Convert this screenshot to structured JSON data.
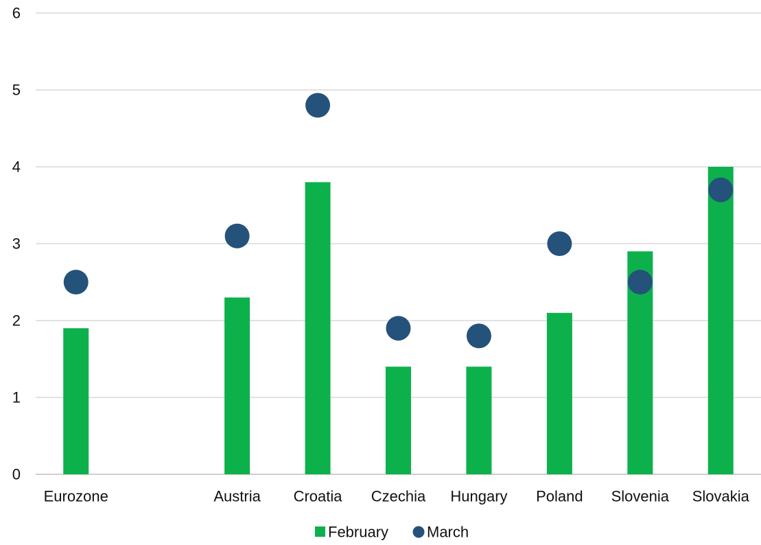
{
  "chart_data": {
    "type": "bar",
    "categories": [
      "Eurozone",
      "",
      "Austria",
      "Croatia",
      "Czechia",
      "Hungary",
      "Poland",
      "Slovenia",
      "Slovakia"
    ],
    "series": [
      {
        "name": "February",
        "type": "bar",
        "color": "#0db14b",
        "values": [
          1.9,
          null,
          2.3,
          3.8,
          1.4,
          1.4,
          2.1,
          2.9,
          4.0
        ]
      },
      {
        "name": "March",
        "type": "scatter",
        "color": "#24527a",
        "values": [
          2.5,
          null,
          3.1,
          4.8,
          1.9,
          1.8,
          3.0,
          2.5,
          3.7
        ]
      }
    ],
    "yticks": [
      "0",
      "1",
      "2",
      "3",
      "4",
      "5",
      "6"
    ],
    "ylim": [
      0,
      6
    ],
    "grid": true,
    "legend_position": "bottom"
  }
}
